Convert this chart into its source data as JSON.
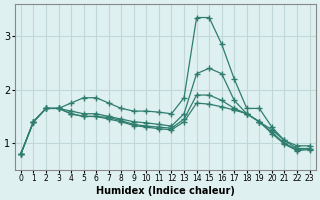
{
  "xlabel": "Humidex (Indice chaleur)",
  "x": [
    0,
    1,
    2,
    3,
    4,
    5,
    6,
    7,
    8,
    9,
    10,
    11,
    12,
    13,
    14,
    15,
    16,
    17,
    18,
    19,
    20,
    21,
    22,
    23
  ],
  "line1": [
    0.8,
    1.4,
    1.65,
    1.65,
    1.75,
    1.85,
    1.85,
    1.75,
    1.65,
    1.6,
    1.6,
    1.58,
    1.55,
    1.85,
    3.35,
    3.35,
    2.85,
    2.2,
    1.65,
    1.65,
    1.3,
    1.05,
    0.95,
    0.95
  ],
  "line2": [
    0.8,
    1.4,
    1.65,
    1.65,
    1.6,
    1.55,
    1.55,
    1.5,
    1.45,
    1.4,
    1.38,
    1.35,
    1.32,
    1.55,
    2.3,
    2.4,
    2.3,
    1.8,
    1.55,
    1.4,
    1.25,
    1.05,
    0.9,
    0.9
  ],
  "line3": [
    0.8,
    1.4,
    1.65,
    1.65,
    1.55,
    1.5,
    1.5,
    1.48,
    1.42,
    1.35,
    1.32,
    1.3,
    1.28,
    1.45,
    1.9,
    1.9,
    1.8,
    1.65,
    1.55,
    1.4,
    1.2,
    1.0,
    0.88,
    0.9
  ],
  "line4": [
    0.8,
    1.4,
    1.65,
    1.65,
    1.55,
    1.5,
    1.5,
    1.45,
    1.4,
    1.33,
    1.3,
    1.27,
    1.25,
    1.4,
    1.75,
    1.73,
    1.68,
    1.62,
    1.55,
    1.4,
    1.18,
    0.98,
    0.86,
    0.88
  ],
  "color": "#2e7d6e",
  "bg_color": "#dff0f0",
  "grid_color": "#c0d8d8",
  "ylim": [
    0.5,
    3.6
  ],
  "yticks": [
    1,
    2,
    3
  ],
  "xlim": [
    -0.5,
    23.5
  ]
}
